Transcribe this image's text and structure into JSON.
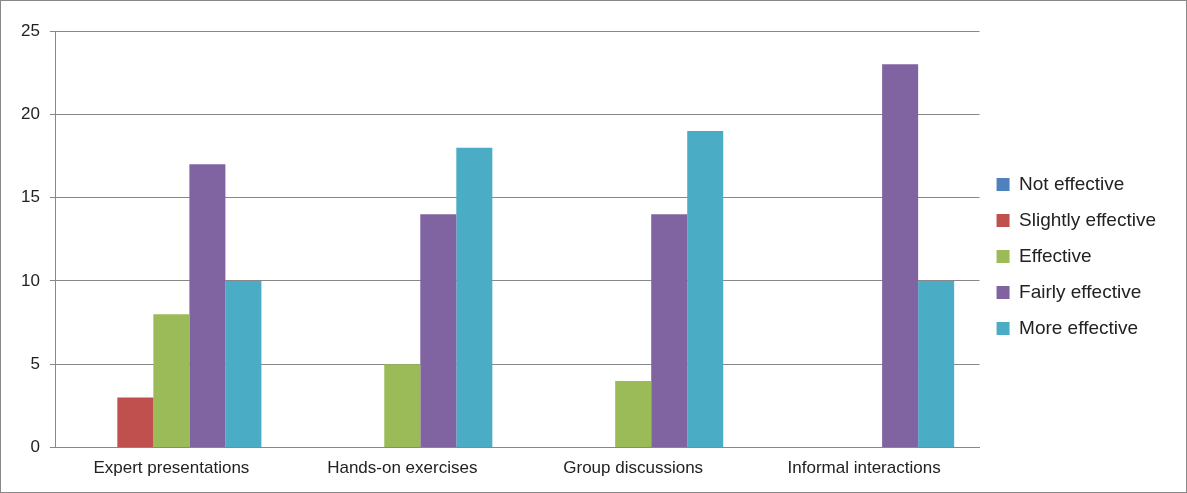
{
  "chart_data": {
    "type": "bar",
    "categories": [
      "Expert presentations",
      "Hands-on exercises",
      "Group discussions",
      "Informal interactions"
    ],
    "series": [
      {
        "name": "Not effective",
        "color": "#4f81bd",
        "values": [
          0,
          0,
          0,
          0
        ]
      },
      {
        "name": "Slightly effective",
        "color": "#c0504d",
        "values": [
          3,
          0,
          0,
          0
        ]
      },
      {
        "name": "Effective",
        "color": "#9bbb59",
        "values": [
          8,
          5,
          4,
          0
        ]
      },
      {
        "name": "Fairly effective",
        "color": "#8064a2",
        "values": [
          17,
          14,
          14,
          23
        ]
      },
      {
        "name": "More effective",
        "color": "#4bacc6",
        "values": [
          10,
          18,
          19,
          10
        ]
      }
    ],
    "ylim": [
      0,
      25
    ],
    "yticks": [
      0,
      5,
      10,
      15,
      20,
      25
    ],
    "grid": "y",
    "legend": "right"
  }
}
